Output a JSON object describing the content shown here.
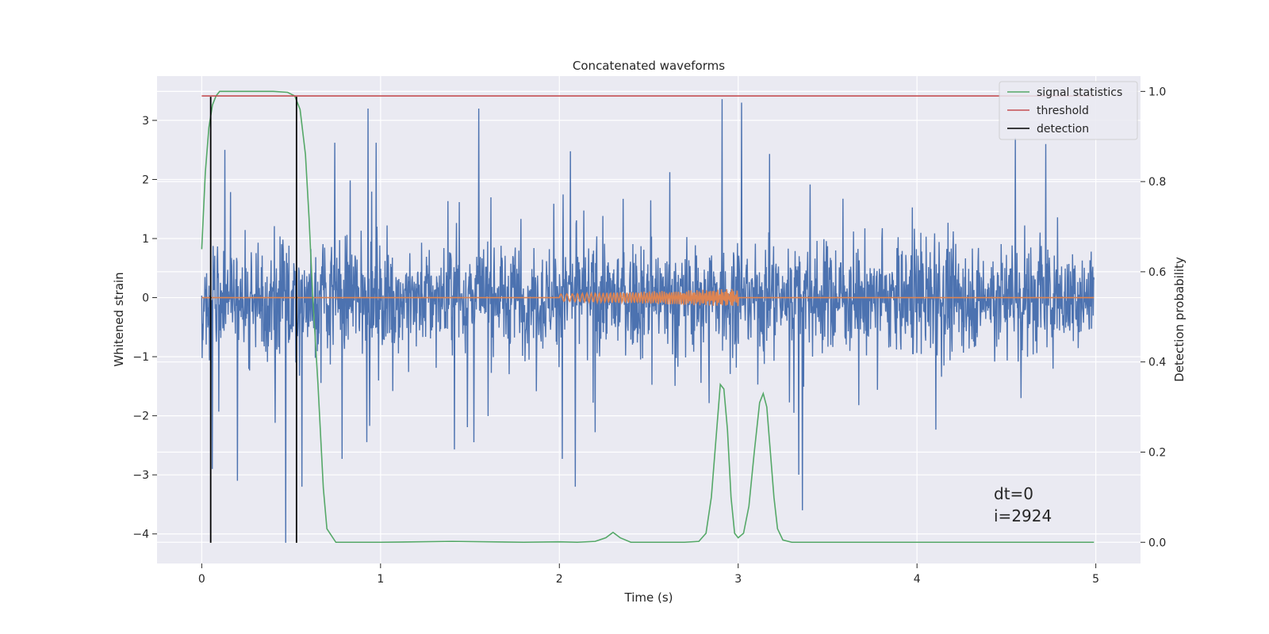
{
  "chart_data": {
    "type": "line",
    "title": "Concatenated waveforms",
    "xlabel": "Time (s)",
    "ylabel_left": "Whitened strain",
    "ylabel_right": "Detection probability",
    "xlim": [
      -0.25,
      5.25
    ],
    "ylim_left": [
      -4.5,
      3.75
    ],
    "ylim_right": [
      -0.047,
      1.034
    ],
    "xticks": [
      0,
      1,
      2,
      3,
      4,
      5
    ],
    "yticks_left": [
      3,
      2,
      1,
      0,
      -1,
      -2,
      -3,
      -4
    ],
    "yticks_right": [
      1.0,
      0.8,
      0.6,
      0.4,
      0.2,
      0.0
    ],
    "xtick_labels": [
      "0",
      "1",
      "2",
      "3",
      "4",
      "5"
    ],
    "ytick_labels_left": [
      "3",
      "2",
      "1",
      "0",
      "−1",
      "−2",
      "−3",
      "−4"
    ],
    "ytick_labels_right": [
      "1.0",
      "0.8",
      "0.6",
      "0.4",
      "0.2",
      "0.0"
    ],
    "grid": true,
    "legend_position": "top-right",
    "colors": {
      "strain": "#4c72b0",
      "injected_signal": "#dd8452",
      "signal_statistics": "#55a868",
      "threshold": "#c44e52",
      "detection": "#000000",
      "background": "#eaeaf2",
      "grid": "#ffffff"
    },
    "series": [
      {
        "name": "signal statistics",
        "axis": "right",
        "x": [
          0.0,
          0.02,
          0.04,
          0.06,
          0.08,
          0.1,
          0.2,
          0.3,
          0.4,
          0.48,
          0.52,
          0.55,
          0.58,
          0.6,
          0.62,
          0.65,
          0.68,
          0.7,
          0.75,
          1.0,
          1.4,
          1.8,
          2.0,
          2.1,
          2.2,
          2.26,
          2.3,
          2.34,
          2.4,
          2.5,
          2.7,
          2.78,
          2.82,
          2.85,
          2.88,
          2.9,
          2.92,
          2.94,
          2.96,
          2.98,
          3.0,
          3.03,
          3.06,
          3.09,
          3.12,
          3.14,
          3.16,
          3.18,
          3.2,
          3.22,
          3.25,
          3.3,
          3.5,
          4.0,
          4.5,
          4.99
        ],
        "y": [
          0.65,
          0.82,
          0.92,
          0.97,
          0.99,
          1.0,
          1.0,
          1.0,
          1.0,
          0.998,
          0.99,
          0.96,
          0.86,
          0.72,
          0.55,
          0.35,
          0.12,
          0.03,
          0.0,
          0.0,
          0.002,
          0.0,
          0.001,
          0.0,
          0.002,
          0.01,
          0.022,
          0.01,
          0.0,
          0.0,
          0.0,
          0.002,
          0.02,
          0.1,
          0.25,
          0.35,
          0.34,
          0.25,
          0.1,
          0.02,
          0.01,
          0.02,
          0.08,
          0.2,
          0.31,
          0.33,
          0.3,
          0.2,
          0.1,
          0.03,
          0.005,
          0.0,
          0.0,
          0.0,
          0.0,
          0.0
        ]
      },
      {
        "name": "threshold",
        "axis": "right",
        "x": [
          0.0,
          4.99
        ],
        "y": [
          0.99,
          0.99
        ]
      },
      {
        "name": "detection",
        "axis": "left",
        "x": [
          0.05,
          0.53
        ],
        "y_range": [
          -4.15,
          3.4
        ]
      },
      {
        "name": "",
        "axis": "left",
        "kind": "noise",
        "x_range": [
          0.0,
          4.99
        ],
        "typical_range": [
          -1.1,
          1.1
        ],
        "max": 3.36,
        "min": -4.15,
        "peak_points": [
          {
            "x": 0.47,
            "y": -4.15
          },
          {
            "x": 0.13,
            "y": 2.5
          },
          {
            "x": 0.06,
            "y": -2.9
          },
          {
            "x": 0.2,
            "y": -3.1
          },
          {
            "x": 0.56,
            "y": -3.2
          },
          {
            "x": 0.93,
            "y": 3.2
          },
          {
            "x": 1.55,
            "y": 3.2
          },
          {
            "x": 2.09,
            "y": -3.2
          },
          {
            "x": 2.91,
            "y": 3.36
          },
          {
            "x": 3.02,
            "y": 3.3
          },
          {
            "x": 3.36,
            "y": -3.6
          },
          {
            "x": 4.55,
            "y": 2.7
          },
          {
            "x": 4.72,
            "y": 2.6
          }
        ]
      },
      {
        "name": "",
        "axis": "left",
        "kind": "chirp",
        "x_range": [
          2.0,
          3.0
        ],
        "amplitude_start": 0.06,
        "amplitude_end": 0.15,
        "baseline": 0.0
      }
    ],
    "legend": [
      "signal statistics",
      "threshold",
      "detection"
    ],
    "annotations": [
      "dt=0",
      "i=2924"
    ]
  }
}
